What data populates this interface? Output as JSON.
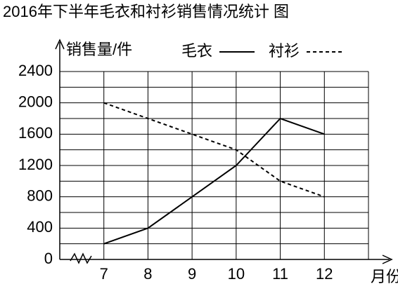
{
  "chart_data": {
    "type": "line",
    "title": "2016年下半年毛衣和衬衫销售情况统计 图",
    "y_label": "销售量/件",
    "x_label": "月份",
    "x": [
      7,
      8,
      9,
      10,
      11,
      12
    ],
    "xlim": [
      6,
      13
    ],
    "xticks": [
      7,
      8,
      9,
      10,
      11,
      12
    ],
    "ylim": [
      0,
      2400
    ],
    "yticks": [
      0,
      400,
      800,
      1200,
      1600,
      2000,
      2400
    ],
    "y_minor_ticks": [
      200,
      600,
      1000,
      1400,
      1800,
      2200
    ],
    "grid": true,
    "series": [
      {
        "name": "毛衣",
        "color": "#000000",
        "dash": "solid",
        "values": [
          200,
          400,
          800,
          1200,
          1800,
          1600
        ]
      },
      {
        "name": "衬衫",
        "color": "#000000",
        "dash": "dashed",
        "values": [
          2000,
          1800,
          1600,
          1400,
          1000,
          800
        ]
      }
    ]
  }
}
